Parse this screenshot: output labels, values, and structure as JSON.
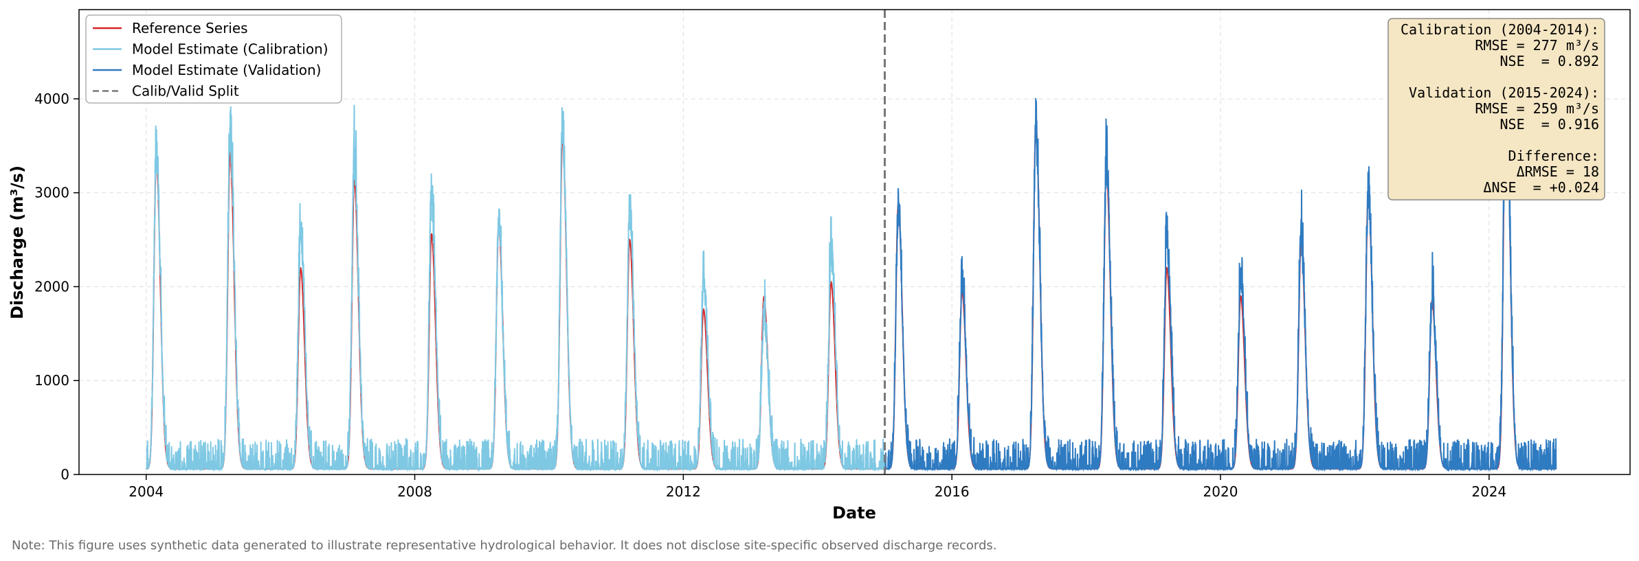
{
  "chart_data": {
    "type": "line",
    "title": "",
    "xlabel": "Date",
    "ylabel": "Discharge (m³/s)",
    "xlim": [
      2003.0,
      2026.1
    ],
    "ylim": [
      0,
      4950
    ],
    "x_ticks": [
      2004,
      2008,
      2012,
      2016,
      2020,
      2024
    ],
    "y_ticks": [
      0,
      1000,
      2000,
      3000,
      4000
    ],
    "grid": true,
    "legend_position": "top-left",
    "legend": [
      {
        "label": "Reference Series",
        "color": "#d62728",
        "style": "solid"
      },
      {
        "label": "Model Estimate (Calibration)",
        "color": "#7ec8e3",
        "style": "solid"
      },
      {
        "label": "Model Estimate (Validation)",
        "color": "#2f7bc1",
        "style": "solid"
      },
      {
        "label": "Calib/Valid Split",
        "color": "#777777",
        "style": "dashed"
      }
    ],
    "split_year": 2015.0,
    "data_range": [
      2004.0,
      2025.0
    ],
    "baseflow_m3s": 60,
    "annual_peaks": [
      {
        "year": 2004.15,
        "reference": 3370,
        "model": 3500,
        "period": "calibration"
      },
      {
        "year": 2005.25,
        "reference": 3420,
        "model": 3750,
        "period": "calibration"
      },
      {
        "year": 2006.3,
        "reference": 2200,
        "model": 2580,
        "period": "calibration"
      },
      {
        "year": 2007.1,
        "reference": 3140,
        "model": 3420,
        "period": "calibration"
      },
      {
        "year": 2008.25,
        "reference": 2560,
        "model": 2980,
        "period": "calibration"
      },
      {
        "year": 2009.25,
        "reference": 2660,
        "model": 2620,
        "period": "calibration"
      },
      {
        "year": 2010.2,
        "reference": 3600,
        "model": 3720,
        "period": "calibration"
      },
      {
        "year": 2011.2,
        "reference": 2500,
        "model": 2850,
        "period": "calibration"
      },
      {
        "year": 2012.3,
        "reference": 1760,
        "model": 2100,
        "period": "calibration"
      },
      {
        "year": 2013.2,
        "reference": 1890,
        "model": 1700,
        "period": "calibration"
      },
      {
        "year": 2014.2,
        "reference": 2050,
        "model": 2400,
        "period": "calibration"
      },
      {
        "year": 2015.2,
        "reference": 2870,
        "model": 2850,
        "period": "validation"
      },
      {
        "year": 2016.15,
        "reference": 1950,
        "model": 2050,
        "period": "validation"
      },
      {
        "year": 2017.25,
        "reference": 3720,
        "model": 3720,
        "period": "validation"
      },
      {
        "year": 2018.3,
        "reference": 3250,
        "model": 3380,
        "period": "validation"
      },
      {
        "year": 2019.2,
        "reference": 2200,
        "model": 2560,
        "period": "validation"
      },
      {
        "year": 2020.3,
        "reference": 1900,
        "model": 2130,
        "period": "validation"
      },
      {
        "year": 2021.2,
        "reference": 2480,
        "model": 2530,
        "period": "validation"
      },
      {
        "year": 2022.2,
        "reference": 3000,
        "model": 3060,
        "period": "validation"
      },
      {
        "year": 2023.15,
        "reference": 1850,
        "model": 1900,
        "period": "validation"
      },
      {
        "year": 2024.25,
        "reference": 4300,
        "model": 4450,
        "period": "validation"
      }
    ],
    "stats_box": [
      "Calibration (2004-2014):",
      "RMSE = 277 m³/s",
      "NSE  = 0.892",
      "",
      "Validation (2015-2024):",
      "RMSE = 259 m³/s",
      "NSE  = 0.916",
      "",
      "Difference:",
      "ΔRMSE = 18",
      "ΔNSE  = +0.024"
    ],
    "note": "Note: This figure uses synthetic data generated to illustrate representative hydrological behavior. It does not disclose site-specific observed discharge records."
  },
  "colors": {
    "reference": "#d62728",
    "calibration": "#7ec8e3",
    "validation": "#2f7bc1",
    "split": "#777777",
    "stats_bg": "#f5e6c4",
    "grid": "#e2e2e2"
  }
}
